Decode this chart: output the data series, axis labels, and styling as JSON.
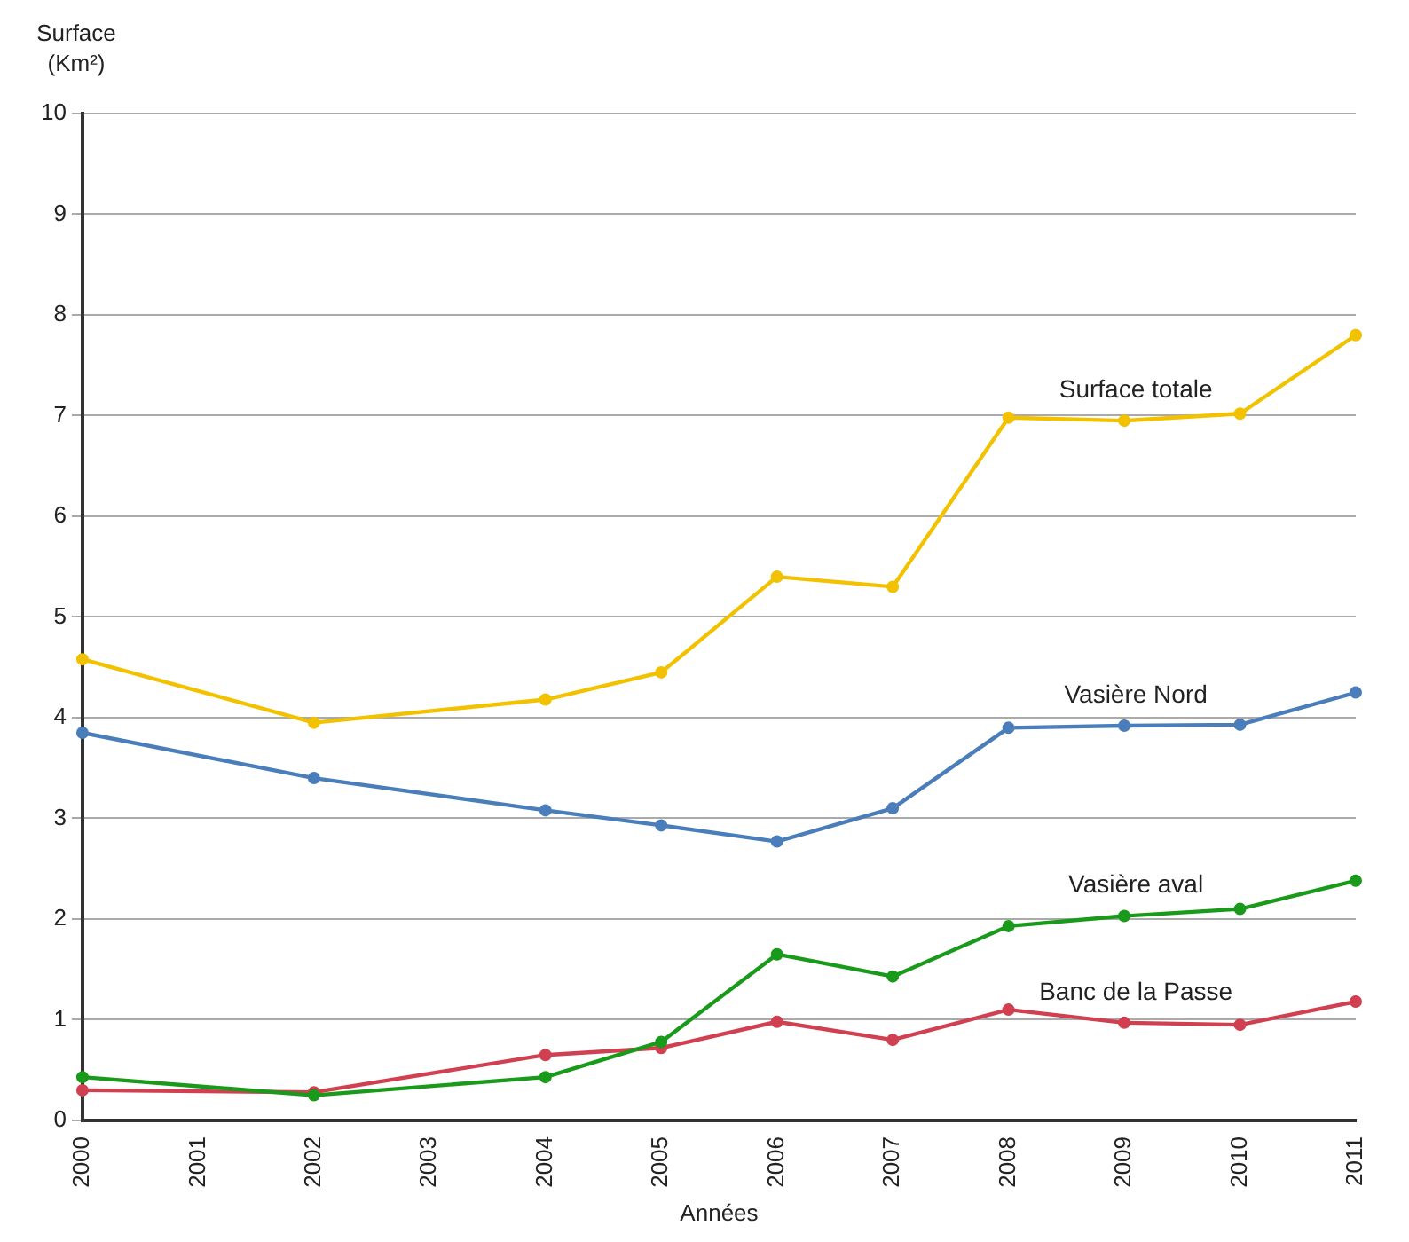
{
  "chart_data": {
    "type": "line",
    "xlabel": "Années",
    "ylabel": "Surface (Km²)",
    "categories": [
      "2000",
      "2001",
      "2002",
      "2003",
      "2004",
      "2005",
      "2006",
      "2007",
      "2008",
      "2009",
      "2010",
      "2011"
    ],
    "series": [
      {
        "name": "Surface totale",
        "color": "#f2c200",
        "values": [
          4.58,
          null,
          3.95,
          null,
          4.18,
          4.45,
          5.4,
          5.3,
          6.98,
          6.95,
          7.02,
          7.8
        ]
      },
      {
        "name": "Vasière Nord",
        "color": "#4a7ebb",
        "values": [
          3.85,
          null,
          3.4,
          null,
          3.08,
          2.93,
          2.77,
          3.1,
          3.9,
          3.92,
          3.93,
          4.25
        ]
      },
      {
        "name": "Vasière aval",
        "color": "#1a9a1a",
        "values": [
          0.43,
          null,
          0.25,
          null,
          0.43,
          0.78,
          1.65,
          1.43,
          1.93,
          2.03,
          2.1,
          2.38
        ]
      },
      {
        "name": "Banc de la Passe",
        "color": "#d04050",
        "values": [
          0.3,
          null,
          0.28,
          null,
          0.65,
          0.72,
          0.98,
          0.8,
          1.1,
          0.97,
          0.95,
          1.18
        ]
      }
    ],
    "ylim": [
      0,
      10
    ],
    "yticks": [
      0,
      1,
      2,
      3,
      4,
      5,
      6,
      7,
      8,
      9,
      10
    ],
    "grid": "y",
    "legend": false,
    "marker": "circle",
    "line_style": "solid"
  }
}
